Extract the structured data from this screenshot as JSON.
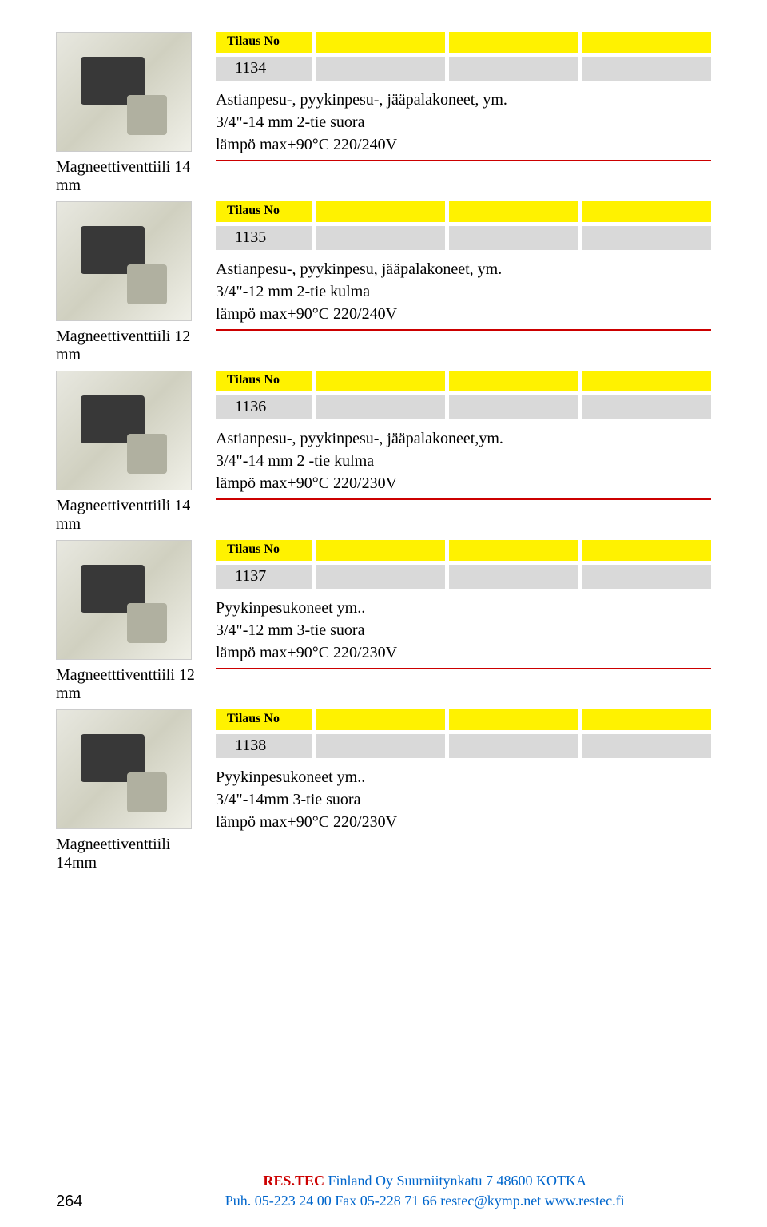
{
  "products": [
    {
      "label": "Magneettiventtiili 14 mm",
      "tilaus": "Tilaus No",
      "number": "1134",
      "desc1": "Astianpesu-, pyykinpesu-, jääpalakoneet, ym.",
      "desc2": "3/4\"-14 mm 2-tie suora",
      "desc3": "lämpö max+90°C 220/240V"
    },
    {
      "label": "Magneettiventtiili 12 mm",
      "tilaus": "Tilaus No",
      "number": "1135",
      "desc1": "Astianpesu-, pyykinpesu, jääpalakoneet, ym.",
      "desc2": "3/4\"-12 mm 2-tie kulma",
      "desc3": "lämpö max+90°C 220/240V"
    },
    {
      "label": "Magneettiventtiili 14 mm",
      "tilaus": "Tilaus No",
      "number": "1136",
      "desc1": "Astianpesu-, pyykinpesu-, jääpalakoneet,ym.",
      "desc2": "3/4\"-14 mm 2 -tie kulma",
      "desc3": "lämpö max+90°C 220/230V"
    },
    {
      "label": "Magneetttiventtiili 12 mm",
      "tilaus": "Tilaus No",
      "number": "1137",
      "desc1": "Pyykinpesukoneet ym..",
      "desc2": "3/4\"-12 mm 3-tie suora",
      "desc3": "lämpö max+90°C 220/230V"
    },
    {
      "label": "Magneettiventtiili 14mm",
      "tilaus": "Tilaus No",
      "number": "1138",
      "desc1": "Pyykinpesukoneet ym..",
      "desc2": "3/4\"-14mm 3-tie suora",
      "desc3": "lämpö max+90°C 220/230V"
    }
  ],
  "footer": {
    "page": "264",
    "company": "RES.TEC",
    "line1_rest": "  Finland Oy       Suurniitynkatu 7       48600 KOTKA",
    "line2": "Puh. 05-223 24 00 Fax 05-228 71 66  restec@kymp.net  www.restec.fi"
  }
}
